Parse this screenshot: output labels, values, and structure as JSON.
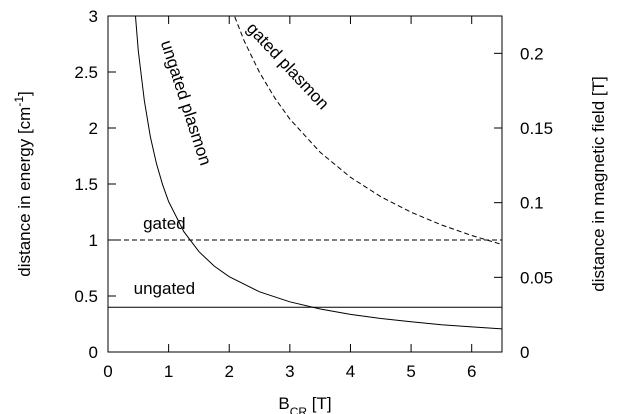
{
  "chart_data": {
    "type": "line",
    "xlabel": "B",
    "xlabel_sub": "CR",
    "xlabel_unit": " [T]",
    "ylabel": "distance in energy [cm",
    "ylabel_sup": "-1",
    "ylabel_end": "]",
    "y2label": "distance in magnetic field [T]",
    "xlim": [
      0,
      6.5
    ],
    "ylim": [
      0,
      3
    ],
    "y2lim": [
      0,
      0.225
    ],
    "xticks": [
      "0",
      "1",
      "2",
      "3",
      "4",
      "5",
      "6"
    ],
    "yticks": [
      "0",
      "0.5",
      "1",
      "1.5",
      "2",
      "2.5",
      "3"
    ],
    "y2ticks": [
      "0",
      "0.05",
      "0.1",
      "0.15",
      "0.2"
    ],
    "grid": false,
    "series": [
      {
        "name": "ungated plasmon",
        "style": "solid",
        "axis": "y2",
        "x": [
          0.4,
          0.5,
          0.6,
          0.7,
          0.8,
          0.9,
          1.0,
          1.25,
          1.5,
          1.75,
          2.0,
          2.5,
          3.0,
          3.5,
          4.0,
          4.5,
          5.0,
          5.5,
          6.0,
          6.5
        ],
        "y": [
          0.252,
          0.2016,
          0.168,
          0.144,
          0.126,
          0.112,
          0.1008,
          0.0806,
          0.0672,
          0.0576,
          0.0504,
          0.0403,
          0.0336,
          0.0288,
          0.0252,
          0.0224,
          0.0202,
          0.0183,
          0.0168,
          0.0155
        ]
      },
      {
        "name": "gated plasmon",
        "style": "dashed",
        "axis": "y2",
        "x": [
          1.8,
          2.0,
          2.25,
          2.5,
          2.75,
          3.0,
          3.5,
          4.0,
          4.5,
          5.0,
          5.5,
          6.0,
          6.5
        ],
        "y": [
          0.26,
          0.234,
          0.208,
          0.1872,
          0.1702,
          0.156,
          0.1337,
          0.117,
          0.104,
          0.0936,
          0.0851,
          0.078,
          0.072
        ]
      },
      {
        "name": "gated",
        "style": "dashed",
        "axis": "y",
        "x": [
          0,
          6.5
        ],
        "y": [
          1.0,
          1.0
        ]
      },
      {
        "name": "ungated",
        "style": "solid",
        "axis": "y",
        "x": [
          0,
          6.5
        ],
        "y": [
          0.4,
          0.4
        ]
      }
    ],
    "annotations": [
      {
        "text": "ungated plasmon",
        "x": 1.2,
        "y": 2.21,
        "rotate": 72
      },
      {
        "text": "gated plasmon",
        "x": 2.9,
        "y": 2.52,
        "rotate": 47
      },
      {
        "text": "gated",
        "x": 0.93,
        "y": 1.1,
        "rotate": 0
      },
      {
        "text": "ungated",
        "x": 0.93,
        "y": 0.52,
        "rotate": 0
      }
    ]
  }
}
